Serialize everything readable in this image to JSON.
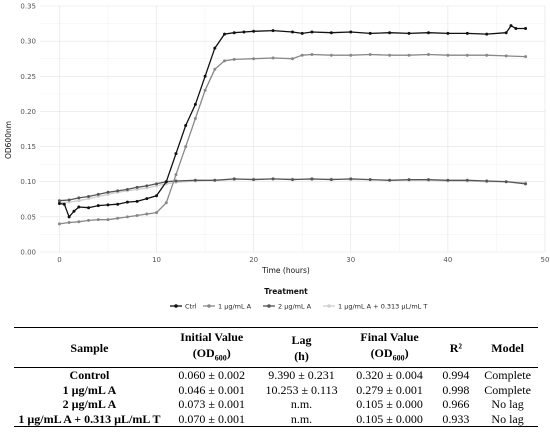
{
  "chart_data": {
    "type": "line",
    "xlabel": "Time (hours)",
    "ylabel": "OD600nm",
    "xlim": [
      -2,
      50
    ],
    "ylim": [
      0,
      0.35
    ],
    "x_ticks": [
      "0",
      "10",
      "20",
      "30",
      "40",
      "50"
    ],
    "y_ticks": [
      "0.00",
      "0.05",
      "0.10",
      "0.15",
      "0.20",
      "0.25",
      "0.30",
      "0.35"
    ],
    "legend_title": "Treatment",
    "legend_position": "bottom",
    "grid": true,
    "series": [
      {
        "name": "Ctrl",
        "color": "#111111",
        "points": [
          [
            0,
            0.069
          ],
          [
            0.5,
            0.068
          ],
          [
            1,
            0.05
          ],
          [
            1.5,
            0.058
          ],
          [
            2,
            0.064
          ],
          [
            3,
            0.063
          ],
          [
            4,
            0.066
          ],
          [
            5,
            0.067
          ],
          [
            6,
            0.068
          ],
          [
            7,
            0.071
          ],
          [
            8,
            0.072
          ],
          [
            9,
            0.076
          ],
          [
            10,
            0.08
          ],
          [
            11,
            0.1
          ],
          [
            12,
            0.14
          ],
          [
            13,
            0.18
          ],
          [
            14,
            0.21
          ],
          [
            15,
            0.25
          ],
          [
            16,
            0.29
          ],
          [
            17,
            0.31
          ],
          [
            18,
            0.312
          ],
          [
            19,
            0.313
          ],
          [
            20,
            0.314
          ],
          [
            22,
            0.315
          ],
          [
            24,
            0.313
          ],
          [
            25,
            0.311
          ],
          [
            26,
            0.313
          ],
          [
            28,
            0.312
          ],
          [
            30,
            0.313
          ],
          [
            32,
            0.311
          ],
          [
            34,
            0.312
          ],
          [
            36,
            0.311
          ],
          [
            38,
            0.312
          ],
          [
            40,
            0.311
          ],
          [
            42,
            0.311
          ],
          [
            44,
            0.31
          ],
          [
            46,
            0.312
          ],
          [
            46.5,
            0.322
          ],
          [
            47,
            0.318
          ],
          [
            48,
            0.318
          ]
        ]
      },
      {
        "name": "1 µg/mL A",
        "color": "#888888",
        "points": [
          [
            0,
            0.04
          ],
          [
            1,
            0.042
          ],
          [
            2,
            0.043
          ],
          [
            3,
            0.045
          ],
          [
            4,
            0.046
          ],
          [
            5,
            0.046
          ],
          [
            6,
            0.048
          ],
          [
            7,
            0.05
          ],
          [
            8,
            0.052
          ],
          [
            9,
            0.054
          ],
          [
            10,
            0.056
          ],
          [
            11,
            0.07
          ],
          [
            12,
            0.11
          ],
          [
            13,
            0.15
          ],
          [
            14,
            0.19
          ],
          [
            15,
            0.23
          ],
          [
            16,
            0.26
          ],
          [
            17,
            0.272
          ],
          [
            18,
            0.274
          ],
          [
            20,
            0.275
          ],
          [
            22,
            0.276
          ],
          [
            24,
            0.275
          ],
          [
            25,
            0.28
          ],
          [
            26,
            0.281
          ],
          [
            28,
            0.28
          ],
          [
            30,
            0.28
          ],
          [
            32,
            0.281
          ],
          [
            34,
            0.28
          ],
          [
            36,
            0.28
          ],
          [
            38,
            0.281
          ],
          [
            40,
            0.28
          ],
          [
            42,
            0.28
          ],
          [
            44,
            0.28
          ],
          [
            46,
            0.279
          ],
          [
            48,
            0.278
          ]
        ]
      },
      {
        "name": "2 µg/mL A",
        "color": "#555555",
        "points": [
          [
            0,
            0.073
          ],
          [
            1,
            0.074
          ],
          [
            2,
            0.077
          ],
          [
            3,
            0.079
          ],
          [
            4,
            0.082
          ],
          [
            5,
            0.085
          ],
          [
            6,
            0.087
          ],
          [
            7,
            0.089
          ],
          [
            8,
            0.092
          ],
          [
            9,
            0.094
          ],
          [
            10,
            0.097
          ],
          [
            11,
            0.1
          ],
          [
            12,
            0.101
          ],
          [
            14,
            0.102
          ],
          [
            16,
            0.102
          ],
          [
            18,
            0.104
          ],
          [
            20,
            0.103
          ],
          [
            22,
            0.104
          ],
          [
            24,
            0.103
          ],
          [
            26,
            0.104
          ],
          [
            28,
            0.103
          ],
          [
            30,
            0.104
          ],
          [
            32,
            0.103
          ],
          [
            34,
            0.102
          ],
          [
            36,
            0.103
          ],
          [
            38,
            0.103
          ],
          [
            40,
            0.102
          ],
          [
            42,
            0.102
          ],
          [
            44,
            0.101
          ],
          [
            46,
            0.1
          ],
          [
            48,
            0.097
          ]
        ]
      },
      {
        "name": "1 µg/mL A + 0.313 µL/mL T",
        "color": "#cfcfcf",
        "points": [
          [
            0,
            0.07
          ],
          [
            1,
            0.071
          ],
          [
            2,
            0.073
          ],
          [
            3,
            0.076
          ],
          [
            4,
            0.079
          ],
          [
            5,
            0.082
          ],
          [
            6,
            0.085
          ],
          [
            7,
            0.087
          ],
          [
            8,
            0.089
          ],
          [
            9,
            0.091
          ],
          [
            10,
            0.094
          ],
          [
            11,
            0.097
          ],
          [
            12,
            0.099
          ],
          [
            14,
            0.101
          ],
          [
            16,
            0.102
          ],
          [
            18,
            0.103
          ],
          [
            20,
            0.104
          ],
          [
            22,
            0.104
          ],
          [
            24,
            0.104
          ],
          [
            26,
            0.103
          ],
          [
            28,
            0.104
          ],
          [
            30,
            0.103
          ],
          [
            32,
            0.103
          ],
          [
            34,
            0.102
          ],
          [
            36,
            0.102
          ],
          [
            38,
            0.102
          ],
          [
            40,
            0.101
          ],
          [
            42,
            0.101
          ],
          [
            44,
            0.1
          ],
          [
            46,
            0.1
          ],
          [
            48,
            0.099
          ]
        ]
      }
    ]
  },
  "table": {
    "headers": [
      {
        "line1": "Sample",
        "line2": ""
      },
      {
        "line1": "Initial Value",
        "line2": "(OD600)"
      },
      {
        "line1": "Lag",
        "line2": "(h)"
      },
      {
        "line1": "Final Value",
        "line2": "(OD600)"
      },
      {
        "line1": "R²",
        "line2": ""
      },
      {
        "line1": "Model",
        "line2": ""
      }
    ],
    "rows": [
      [
        "Control",
        "0.060 ± 0.002",
        "9.390 ± 0.231",
        "0.320 ± 0.004",
        "0.994",
        "Complete"
      ],
      [
        "1 µg/mL A",
        "0.046 ± 0.001",
        "10.253 ± 0.113",
        "0.279 ± 0.001",
        "0.998",
        "Complete"
      ],
      [
        "2 µg/mL A",
        "0.073 ± 0.001",
        "n.m.",
        "0.105 ± 0.000",
        "0.966",
        "No lag"
      ],
      [
        "1 µg/mL A + 0.313 µL/mL T",
        "0.070 ± 0.001",
        "n.m.",
        "0.105 ± 0.000",
        "0.933",
        "No lag"
      ]
    ]
  }
}
